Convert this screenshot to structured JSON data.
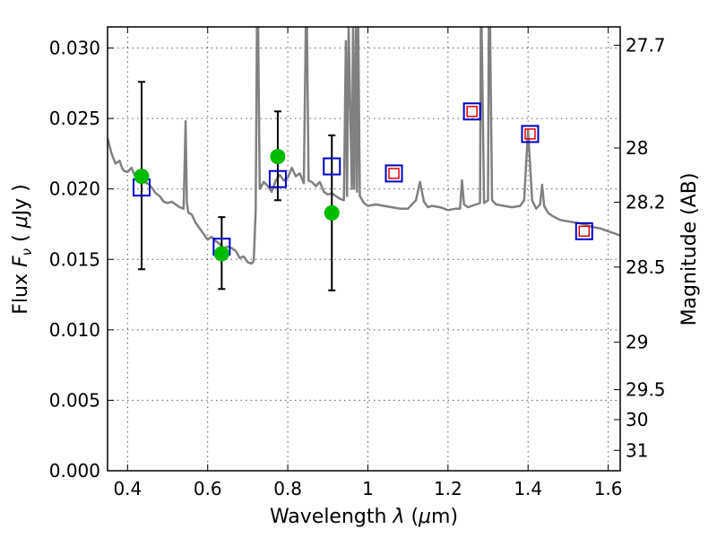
{
  "chart_data": {
    "type": "scatter",
    "title": "",
    "xlabel": "Wavelength  λ (μm)",
    "ylabel": "Flux  Fν  ( μJy )",
    "y2label": "Magnitude (AB)",
    "xlim": [
      0.35,
      1.63
    ],
    "ylim": [
      0.0,
      0.0315
    ],
    "grid": true,
    "x_ticks": [
      {
        "value": 0.4,
        "label": "0.4"
      },
      {
        "value": 0.6,
        "label": "0.6"
      },
      {
        "value": 0.8,
        "label": "0.8"
      },
      {
        "value": 1.0,
        "label": "1"
      },
      {
        "value": 1.2,
        "label": "1.2"
      },
      {
        "value": 1.4,
        "label": "1.4"
      },
      {
        "value": 1.6,
        "label": "1.6"
      }
    ],
    "y_ticks": [
      {
        "value": 0.0,
        "label": "0.000"
      },
      {
        "value": 0.005,
        "label": "0.005"
      },
      {
        "value": 0.01,
        "label": "0.010"
      },
      {
        "value": 0.015,
        "label": "0.015"
      },
      {
        "value": 0.02,
        "label": "0.020"
      },
      {
        "value": 0.025,
        "label": "0.025"
      },
      {
        "value": 0.03,
        "label": "0.030"
      }
    ],
    "y2_ticks": [
      {
        "value": 27.7,
        "label": "27.7"
      },
      {
        "value": 28.0,
        "label": "28"
      },
      {
        "value": 28.2,
        "label": "28.2"
      },
      {
        "value": 28.5,
        "label": "28.5"
      },
      {
        "value": 29.0,
        "label": "29"
      },
      {
        "value": 29.5,
        "label": "29.5"
      },
      {
        "value": 30.0,
        "label": "30"
      },
      {
        "value": 31.0,
        "label": "31"
      }
    ],
    "colors": {
      "spectrum": "#808080",
      "observed": "#00bb00",
      "model_blue": "#0000cc",
      "model_red": "#dd0000",
      "errorbar": "#000000",
      "grid": "#555555"
    },
    "series": [
      {
        "kind": "line",
        "color": "#808080",
        "x": [
          0.35,
          0.36,
          0.37,
          0.38,
          0.385,
          0.39,
          0.4,
          0.41,
          0.42,
          0.43,
          0.44,
          0.45,
          0.46,
          0.47,
          0.48,
          0.49,
          0.5,
          0.51,
          0.52,
          0.53,
          0.54,
          0.545,
          0.548,
          0.552,
          0.56,
          0.57,
          0.58,
          0.59,
          0.6,
          0.61,
          0.62,
          0.63,
          0.64,
          0.65,
          0.66,
          0.67,
          0.68,
          0.69,
          0.7,
          0.71,
          0.715,
          0.72,
          0.723,
          0.726,
          0.73,
          0.74,
          0.75,
          0.76,
          0.77,
          0.78,
          0.79,
          0.8,
          0.81,
          0.82,
          0.83,
          0.84,
          0.845,
          0.848,
          0.852,
          0.86,
          0.87,
          0.88,
          0.89,
          0.9,
          0.91,
          0.92,
          0.93,
          0.94,
          0.945,
          0.948,
          0.952,
          0.96,
          0.963,
          0.966,
          0.97,
          0.973,
          0.976,
          0.98,
          0.99,
          1.0,
          1.02,
          1.04,
          1.06,
          1.08,
          1.1,
          1.12,
          1.13,
          1.14,
          1.15,
          1.16,
          1.18,
          1.2,
          1.22,
          1.23,
          1.235,
          1.24,
          1.25,
          1.26,
          1.27,
          1.28,
          1.282,
          1.284,
          1.29,
          1.3,
          1.302,
          1.305,
          1.31,
          1.32,
          1.34,
          1.36,
          1.38,
          1.39,
          1.4,
          1.41,
          1.42,
          1.43,
          1.435,
          1.44,
          1.45,
          1.46,
          1.48,
          1.5,
          1.52,
          1.54,
          1.56,
          1.58,
          1.6,
          1.62,
          1.63
        ],
        "y": [
          0.0236,
          0.0225,
          0.0218,
          0.022,
          0.0216,
          0.0213,
          0.0212,
          0.0215,
          0.0208,
          0.0212,
          0.0205,
          0.0204,
          0.0201,
          0.0197,
          0.0195,
          0.0191,
          0.019,
          0.0191,
          0.0189,
          0.0187,
          0.0186,
          0.0248,
          0.019,
          0.0183,
          0.0182,
          0.0176,
          0.0172,
          0.0168,
          0.0164,
          0.0166,
          0.0163,
          0.0161,
          0.0158,
          0.0159,
          0.0158,
          0.0156,
          0.0151,
          0.0152,
          0.0148,
          0.0147,
          0.0149,
          0.0185,
          0.0315,
          0.0315,
          0.02,
          0.0205,
          0.0202,
          0.0198,
          0.0206,
          0.021,
          0.0206,
          0.0208,
          0.0215,
          0.0209,
          0.0211,
          0.0204,
          0.0315,
          0.0315,
          0.0206,
          0.0205,
          0.0202,
          0.0205,
          0.0198,
          0.0196,
          0.0197,
          0.0195,
          0.0193,
          0.0192,
          0.0305,
          0.0195,
          0.0315,
          0.02,
          0.0315,
          0.02,
          0.0315,
          0.0198,
          0.0315,
          0.0195,
          0.019,
          0.0188,
          0.0189,
          0.0188,
          0.0187,
          0.0186,
          0.0186,
          0.0192,
          0.0205,
          0.0191,
          0.0187,
          0.0188,
          0.0187,
          0.0185,
          0.0186,
          0.0186,
          0.0206,
          0.0189,
          0.0187,
          0.0188,
          0.0189,
          0.019,
          0.0315,
          0.0315,
          0.019,
          0.0192,
          0.0315,
          0.0315,
          0.0192,
          0.0189,
          0.0188,
          0.0187,
          0.0188,
          0.0192,
          0.0242,
          0.0192,
          0.0186,
          0.0189,
          0.0203,
          0.0188,
          0.0183,
          0.0181,
          0.0178,
          0.0177,
          0.0176,
          0.0175,
          0.0173,
          0.0172,
          0.017,
          0.0168,
          0.0167
        ]
      },
      {
        "kind": "open-square",
        "color": "#0000cc",
        "x": [
          0.435,
          0.635,
          0.775,
          0.91,
          1.065,
          1.26,
          1.405,
          1.54
        ],
        "y": [
          0.0201,
          0.0159,
          0.0207,
          0.0216,
          0.0211,
          0.0255,
          0.0239,
          0.017
        ]
      },
      {
        "kind": "small-open-square",
        "color": "#dd0000",
        "x": [
          1.065,
          1.26,
          1.405,
          1.54
        ],
        "y": [
          0.0211,
          0.0255,
          0.0239,
          0.017
        ]
      },
      {
        "kind": "filled-circle",
        "color": "#00bb00",
        "x": [
          0.435,
          0.635,
          0.775,
          0.91
        ],
        "y": [
          0.0209,
          0.0154,
          0.0223,
          0.0183
        ],
        "err_low": [
          0.0143,
          0.0129,
          0.0192,
          0.0128
        ],
        "err_high": [
          0.0276,
          0.018,
          0.0255,
          0.0238
        ]
      }
    ]
  }
}
